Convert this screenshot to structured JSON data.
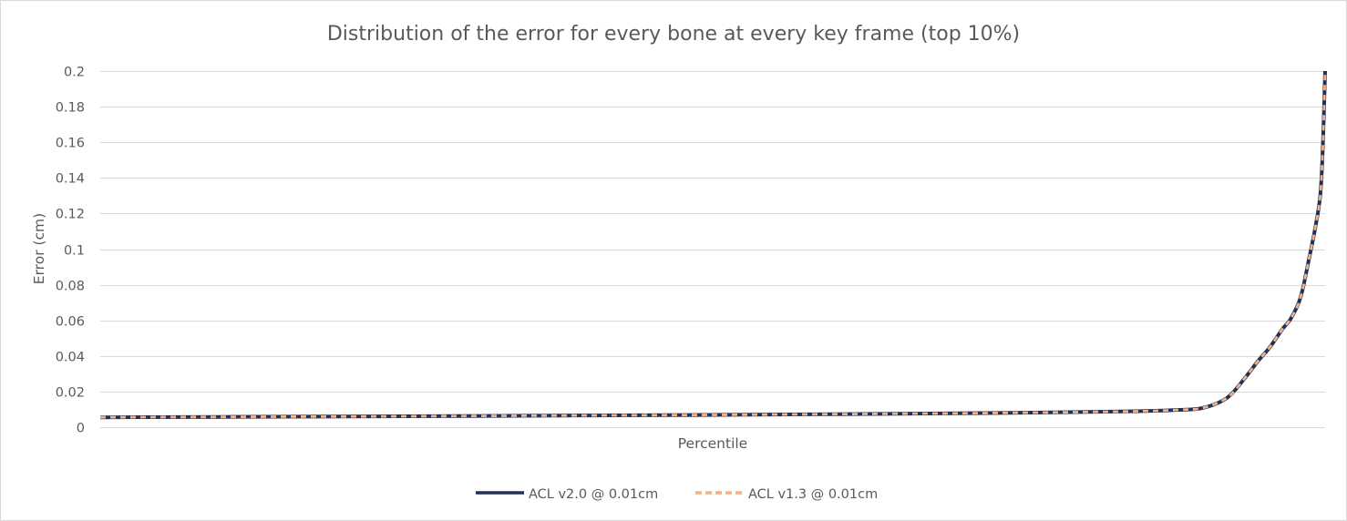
{
  "chart_data": {
    "type": "line",
    "title": "Distribution of the error for every bone at every key frame (top 10%)",
    "xlabel": "Percentile",
    "ylabel": "Error (cm)",
    "ylim": [
      0,
      0.2
    ],
    "yticks": [
      "0",
      "0.02",
      "0.04",
      "0.06",
      "0.08",
      "0.1",
      "0.12",
      "0.14",
      "0.16",
      "0.18",
      "0.2"
    ],
    "xlim": [
      90,
      100
    ],
    "grid": true,
    "legend_position": "bottom",
    "x": [
      90,
      91,
      92,
      93,
      94,
      95,
      96,
      97,
      98,
      98.5,
      98.8,
      99.0,
      99.2,
      99.35,
      99.45,
      99.55,
      99.65,
      99.72,
      99.8,
      99.87,
      99.92,
      99.96,
      99.98,
      100
    ],
    "series": [
      {
        "name": "ACL v2.0 @ 0.01cm",
        "color": "#1f3158",
        "dash": "solid",
        "values": [
          0.0055,
          0.0058,
          0.006,
          0.0063,
          0.0066,
          0.0069,
          0.0073,
          0.0078,
          0.0085,
          0.009,
          0.0097,
          0.0108,
          0.0165,
          0.028,
          0.037,
          0.045,
          0.055,
          0.061,
          0.073,
          0.095,
          0.112,
          0.13,
          0.155,
          0.2
        ]
      },
      {
        "name": "ACL v1.3 @ 0.01cm",
        "color": "#f4b183",
        "dash": "dashed",
        "values": [
          0.0055,
          0.0058,
          0.006,
          0.0063,
          0.0066,
          0.0069,
          0.0073,
          0.0078,
          0.0085,
          0.009,
          0.0097,
          0.0108,
          0.0165,
          0.028,
          0.037,
          0.045,
          0.055,
          0.061,
          0.073,
          0.095,
          0.112,
          0.13,
          0.155,
          0.2
        ]
      }
    ]
  }
}
